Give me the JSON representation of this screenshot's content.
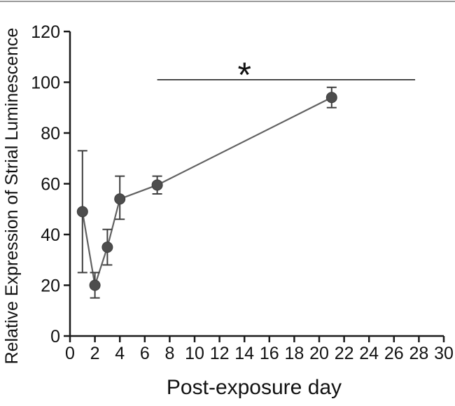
{
  "figure": {
    "background": "#ffffff",
    "top_border_color": "#9a9a9a"
  },
  "chart_data": {
    "type": "line",
    "title": "",
    "xlabel": "Post-exposure day",
    "ylabel": "Relative Expression of Strial Luminescence",
    "x": [
      1,
      2,
      3,
      4,
      7,
      21
    ],
    "values": [
      49,
      20,
      35,
      54,
      59.5,
      94
    ],
    "error_upper": [
      73,
      25,
      42,
      63,
      63,
      98
    ],
    "error_lower": [
      25,
      15,
      28,
      46,
      56,
      90
    ],
    "xlim": [
      0,
      30
    ],
    "ylim": [
      0,
      120
    ],
    "x_ticks": [
      0,
      2,
      4,
      6,
      8,
      10,
      12,
      14,
      16,
      18,
      20,
      22,
      24,
      26,
      28,
      30
    ],
    "y_ticks": [
      0,
      20,
      40,
      60,
      80,
      100,
      120
    ],
    "grid": false,
    "legend": "none",
    "colors": {
      "axis": "#1a1a1a",
      "marker_fill": "#4d4d4d",
      "marker_stroke": "#3c3c3c",
      "series_line": "#616161",
      "error_bar": "#3f3f3f",
      "annotation": "#333333"
    },
    "annotation": {
      "type": "significance-bar",
      "label": "*",
      "x_start": 7,
      "x_end": 27.7,
      "y": 101,
      "label_x": 14
    }
  }
}
